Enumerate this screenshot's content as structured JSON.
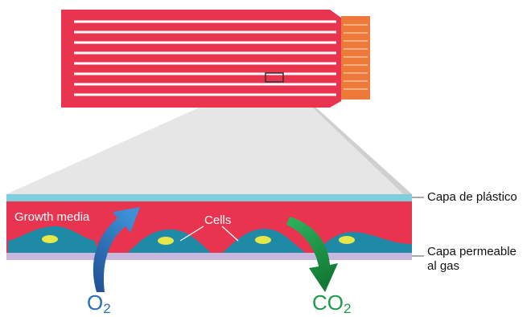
{
  "labels": {
    "plastic_layer": "Capa de plástico",
    "permeable_layer_line1": "Capa permeable",
    "permeable_layer_line2": "al gas",
    "growth_media": "Growth media",
    "cells": "Cells",
    "oxygen_symbol": "O",
    "oxygen_subscript": "2",
    "co2_symbol": "CO",
    "co2_subscript": "2"
  },
  "colors": {
    "flask_body": "#e8344e",
    "flask_stripes": "#ffffff",
    "cap": "#ee7a3a",
    "growth_media": "#e8344e",
    "plastic_layer": "#7ecfdc",
    "cells": "#1f8aa6",
    "nucleus": "#e6e84a",
    "permeable_layer": "#c9b8de",
    "o2_arrow": "#2b6fb5",
    "co2_arrow": "#1f9a4a",
    "o2_text": "#2b6fb5",
    "co2_text": "#1f9a4a"
  }
}
